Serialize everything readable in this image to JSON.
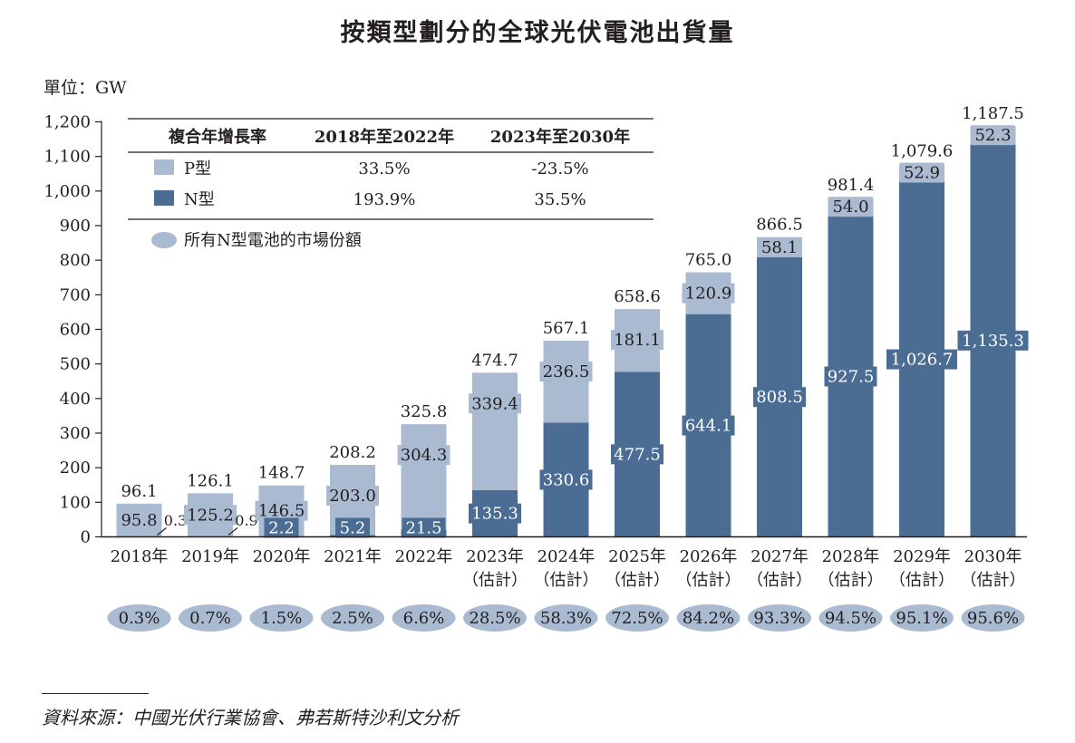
{
  "title": "按類型劃分的全球光伏電池出貨量",
  "unit_label": "單位：GW",
  "source": "資料來源：中國光伏行業協會、弗若斯特沙利文分析",
  "colors": {
    "p_type": "#a9bad1",
    "n_type": "#4b6d93",
    "axis": "#231f20",
    "share_bubble": "#a9bad1"
  },
  "chart_data": {
    "type": "bar",
    "stacked": true,
    "ylim": [
      0,
      1200
    ],
    "yticks": [
      "0",
      "100",
      "200",
      "300",
      "400",
      "500",
      "600",
      "700",
      "800",
      "900",
      "1,000",
      "1,100",
      "1,200"
    ],
    "categories": [
      {
        "year": "2018年",
        "note": ""
      },
      {
        "year": "2019年",
        "note": ""
      },
      {
        "year": "2020年",
        "note": ""
      },
      {
        "year": "2021年",
        "note": ""
      },
      {
        "year": "2022年",
        "note": ""
      },
      {
        "year": "2023年",
        "note": "（估計）"
      },
      {
        "year": "2024年",
        "note": "（估計）"
      },
      {
        "year": "2025年",
        "note": "（估計）"
      },
      {
        "year": "2026年",
        "note": "（估計）"
      },
      {
        "year": "2027年",
        "note": "（估計）"
      },
      {
        "year": "2028年",
        "note": "（估計）"
      },
      {
        "year": "2029年",
        "note": "（估計）"
      },
      {
        "year": "2030年",
        "note": "（估計）"
      }
    ],
    "series": [
      {
        "name": "N型",
        "values": [
          0.3,
          0.9,
          2.2,
          5.2,
          21.5,
          135.3,
          330.6,
          477.5,
          644.1,
          808.5,
          927.5,
          1026.7,
          1135.3
        ],
        "labels": [
          "0.3",
          "0.9",
          "2.2",
          "5.2",
          "21.5",
          "135.3",
          "330.6",
          "477.5",
          "644.1",
          "808.5",
          "927.5",
          "1,026.7",
          "1,135.3"
        ]
      },
      {
        "name": "P型",
        "values": [
          95.8,
          125.2,
          146.5,
          203.0,
          304.3,
          339.4,
          236.5,
          181.1,
          120.9,
          58.1,
          54.0,
          52.9,
          52.3
        ],
        "labels": [
          "95.8",
          "125.2",
          "146.5",
          "203.0",
          "304.3",
          "339.4",
          "236.5",
          "181.1",
          "120.9",
          "58.1",
          "54.0",
          "52.9",
          "52.3"
        ]
      }
    ],
    "totals": [
      96.1,
      126.1,
      148.7,
      208.2,
      325.8,
      474.7,
      567.1,
      658.6,
      765.0,
      866.5,
      981.4,
      1079.6,
      1187.5
    ],
    "total_labels": [
      "96.1",
      "126.1",
      "148.7",
      "208.2",
      "325.8",
      "474.7",
      "567.1",
      "658.6",
      "765.0",
      "866.5",
      "981.4",
      "1,079.6",
      "1,187.5"
    ],
    "n_share_labels": [
      "0.3%",
      "0.7%",
      "1.5%",
      "2.5%",
      "6.6%",
      "28.5%",
      "58.3%",
      "72.5%",
      "84.2%",
      "93.3%",
      "94.5%",
      "95.1%",
      "95.6%"
    ],
    "legend": {
      "header": [
        "複合年增長率",
        "2018年至2022年",
        "2023年至2030年"
      ],
      "rows": [
        {
          "name": "P型",
          "cagr_2018_2022": "33.5%",
          "cagr_2023_2030": "-23.5%"
        },
        {
          "name": "N型",
          "cagr_2018_2022": "193.9%",
          "cagr_2023_2030": "35.5%"
        }
      ],
      "share_label": "所有N型電池的市場份額"
    }
  }
}
